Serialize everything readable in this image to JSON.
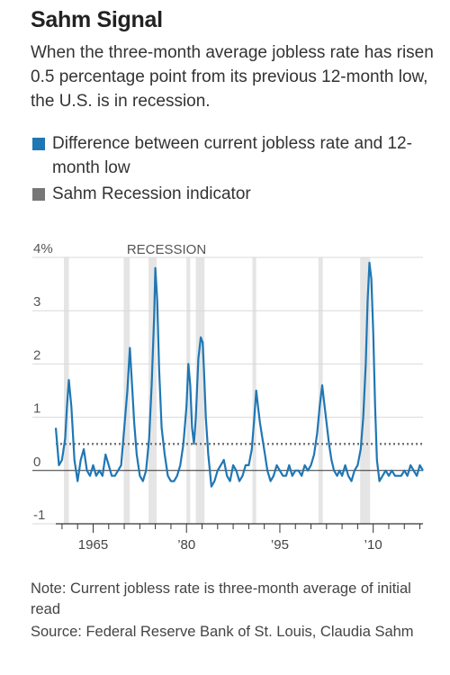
{
  "title": "Sahm Signal",
  "subtitle": "When the three-month average jobless rate has risen 0.5 percentage point from its previous 12-month low, the U.S. is in recession.",
  "legend": [
    {
      "label": "Difference between current jobless rate and 12-month low",
      "color": "#1f77b4"
    },
    {
      "label": "Sahm Recession indicator",
      "color": "#777777"
    }
  ],
  "footer": {
    "note": "Note: Current jobless rate is three-month average of initial read",
    "source": "Source: Federal Reserve Bank of St. Louis, Claudia Sahm"
  },
  "chart_data": {
    "type": "line",
    "xlim": [
      1959,
      2018
    ],
    "ylim": [
      -1,
      4
    ],
    "y_ticks": [
      -1,
      0,
      1,
      2,
      3,
      4
    ],
    "y_tick_labels": [
      "-1",
      "0",
      "1",
      "2",
      "3",
      "4%"
    ],
    "x_ticks": [
      1965,
      1980,
      1995,
      2010
    ],
    "x_tick_labels": [
      "1965",
      "’80",
      "’95",
      "’10"
    ],
    "recession_label": "RECESSION",
    "recessions": [
      [
        1960.3,
        1961.1
      ],
      [
        1969.9,
        1970.9
      ],
      [
        1973.9,
        1975.2
      ],
      [
        1980.0,
        1980.6
      ],
      [
        1981.5,
        1982.9
      ],
      [
        1990.6,
        1991.2
      ],
      [
        2001.2,
        2001.9
      ],
      [
        2007.9,
        2009.5
      ]
    ],
    "threshold": 0.5,
    "colors": {
      "line": "#1f77b4",
      "threshold": "#777777",
      "recession": "#e5e5e5"
    },
    "series": [
      {
        "name": "Difference between current jobless rate and 12-month low",
        "x": [
          1959.0,
          1959.5,
          1960.0,
          1960.5,
          1960.8,
          1961.1,
          1961.5,
          1962.0,
          1962.5,
          1963.0,
          1963.5,
          1964.0,
          1964.5,
          1965.0,
          1965.5,
          1966.0,
          1966.5,
          1967.0,
          1967.5,
          1968.0,
          1968.5,
          1969.0,
          1969.5,
          1970.0,
          1970.5,
          1970.9,
          1971.2,
          1971.6,
          1972.0,
          1972.5,
          1973.0,
          1973.5,
          1974.0,
          1974.4,
          1974.8,
          1975.0,
          1975.3,
          1975.6,
          1976.0,
          1976.5,
          1977.0,
          1977.5,
          1978.0,
          1978.5,
          1979.0,
          1979.5,
          1980.0,
          1980.3,
          1980.6,
          1980.9,
          1981.2,
          1981.5,
          1981.9,
          1982.3,
          1982.6,
          1982.8,
          1983.1,
          1983.5,
          1984.0,
          1984.5,
          1985.0,
          1985.5,
          1986.0,
          1986.5,
          1987.0,
          1987.5,
          1988.0,
          1988.5,
          1989.0,
          1989.5,
          1990.0,
          1990.5,
          1990.9,
          1991.2,
          1991.5,
          1991.8,
          1992.2,
          1992.6,
          1993.0,
          1993.5,
          1994.0,
          1994.5,
          1995.0,
          1995.5,
          1996.0,
          1996.5,
          1997.0,
          1997.5,
          1998.0,
          1998.5,
          1999.0,
          1999.5,
          2000.0,
          2000.5,
          2001.0,
          2001.4,
          2001.8,
          2002.1,
          2002.5,
          2002.9,
          2003.3,
          2003.7,
          2004.2,
          2004.6,
          2005.0,
          2005.5,
          2006.0,
          2006.5,
          2007.0,
          2007.5,
          2008.0,
          2008.4,
          2008.8,
          2009.1,
          2009.4,
          2009.7,
          2010.0,
          2010.3,
          2010.6,
          2011.0,
          2011.5,
          2012.0,
          2012.5,
          2013.0,
          2013.5,
          2014.0,
          2014.5,
          2015.0,
          2015.5,
          2016.0,
          2016.5,
          2017.0,
          2017.5,
          2018.0
        ],
        "values": [
          0.8,
          0.1,
          0.2,
          0.6,
          1.2,
          1.7,
          1.2,
          0.2,
          -0.2,
          0.2,
          0.4,
          0.0,
          -0.1,
          0.1,
          -0.1,
          0.0,
          -0.1,
          0.3,
          0.1,
          -0.1,
          -0.1,
          0.0,
          0.1,
          0.8,
          1.5,
          2.3,
          1.7,
          0.9,
          0.3,
          -0.1,
          -0.2,
          0.0,
          0.6,
          1.6,
          2.9,
          3.8,
          3.2,
          1.9,
          0.8,
          0.3,
          -0.1,
          -0.2,
          -0.2,
          -0.1,
          0.1,
          0.5,
          1.2,
          2.0,
          1.6,
          0.8,
          0.5,
          1.0,
          2.1,
          2.5,
          2.4,
          1.9,
          1.0,
          0.3,
          -0.3,
          -0.2,
          0.0,
          0.1,
          0.2,
          -0.1,
          -0.2,
          0.1,
          0.0,
          -0.2,
          -0.1,
          0.1,
          0.1,
          0.4,
          1.0,
          1.5,
          1.2,
          0.9,
          0.6,
          0.3,
          0.0,
          -0.2,
          -0.1,
          0.1,
          0.0,
          -0.1,
          -0.1,
          0.1,
          -0.1,
          0.0,
          0.0,
          -0.1,
          0.1,
          0.0,
          0.1,
          0.3,
          0.7,
          1.2,
          1.6,
          1.3,
          0.9,
          0.5,
          0.2,
          0.0,
          -0.1,
          0.0,
          -0.1,
          0.1,
          -0.1,
          -0.2,
          0.0,
          0.1,
          0.4,
          1.0,
          2.0,
          3.2,
          3.9,
          3.6,
          2.6,
          1.2,
          0.2,
          -0.2,
          -0.1,
          0.0,
          -0.1,
          0.0,
          -0.1,
          -0.1,
          -0.1,
          0.0,
          -0.1,
          0.1,
          0.0,
          -0.1,
          0.1,
          0.0
        ]
      }
    ]
  }
}
